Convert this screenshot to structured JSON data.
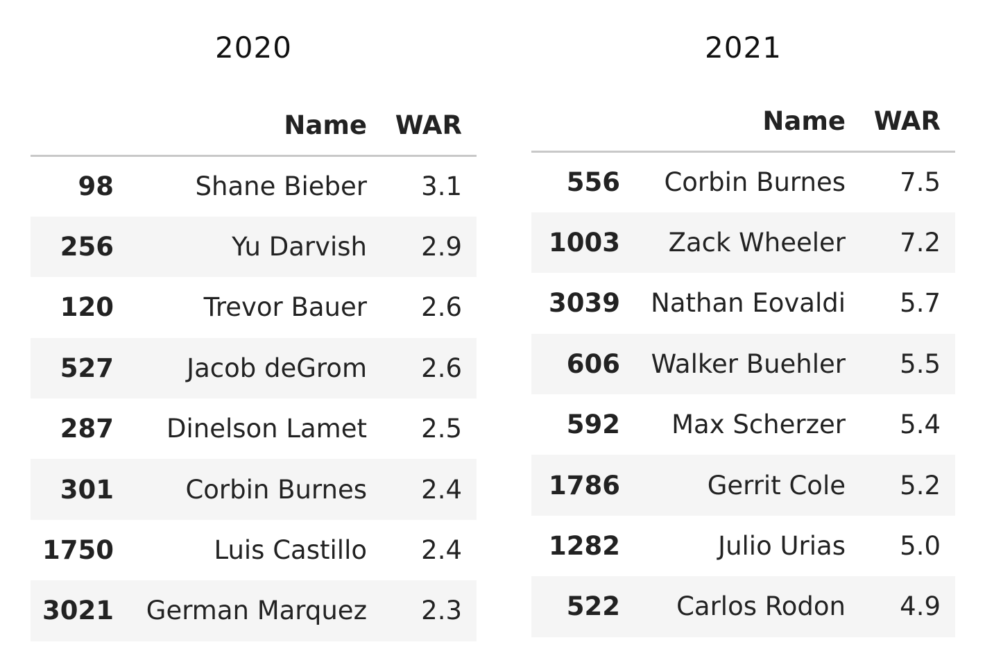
{
  "tables": [
    {
      "caption": "2020",
      "columns": [
        "",
        "Name",
        "WAR"
      ],
      "rows": [
        {
          "index": "98",
          "name": "Shane Bieber",
          "war": "3.1"
        },
        {
          "index": "256",
          "name": "Yu Darvish",
          "war": "2.9"
        },
        {
          "index": "120",
          "name": "Trevor Bauer",
          "war": "2.6"
        },
        {
          "index": "527",
          "name": "Jacob deGrom",
          "war": "2.6"
        },
        {
          "index": "287",
          "name": "Dinelson Lamet",
          "war": "2.5"
        },
        {
          "index": "301",
          "name": "Corbin Burnes",
          "war": "2.4"
        },
        {
          "index": "1750",
          "name": "Luis Castillo",
          "war": "2.4"
        },
        {
          "index": "3021",
          "name": "German Marquez",
          "war": "2.3"
        }
      ]
    },
    {
      "caption": "2021",
      "columns": [
        "",
        "Name",
        "WAR"
      ],
      "rows": [
        {
          "index": "556",
          "name": "Corbin Burnes",
          "war": "7.5"
        },
        {
          "index": "1003",
          "name": "Zack Wheeler",
          "war": "7.2"
        },
        {
          "index": "3039",
          "name": "Nathan Eovaldi",
          "war": "5.7"
        },
        {
          "index": "606",
          "name": "Walker Buehler",
          "war": "5.5"
        },
        {
          "index": "592",
          "name": "Max Scherzer",
          "war": "5.4"
        },
        {
          "index": "1786",
          "name": "Gerrit Cole",
          "war": "5.2"
        },
        {
          "index": "1282",
          "name": "Julio Urias",
          "war": "5.0"
        },
        {
          "index": "522",
          "name": "Carlos Rodon",
          "war": "4.9"
        }
      ]
    }
  ]
}
